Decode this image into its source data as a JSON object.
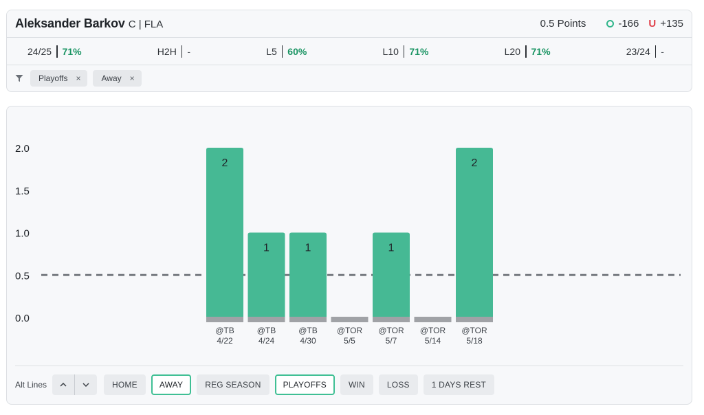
{
  "header": {
    "player_name": "Aleksander Barkov",
    "position_team": "C | FLA",
    "points_label": "0.5 Points",
    "over_odds": "-166",
    "under_symbol": "U",
    "under_odds": "+135"
  },
  "stats": [
    {
      "label": "24/25",
      "value": "71%"
    },
    {
      "label": "H2H",
      "value": "-"
    },
    {
      "label": "L5",
      "value": "60%"
    },
    {
      "label": "L10",
      "value": "71%"
    },
    {
      "label": "L20",
      "value": "71%"
    },
    {
      "label": "23/24",
      "value": "-"
    }
  ],
  "filters": [
    {
      "label": "Playoffs",
      "remove": "×"
    },
    {
      "label": "Away",
      "remove": "×"
    }
  ],
  "colors": {
    "bar": "#46b994",
    "bar_base": "#a0a2a6",
    "line": "#767a80",
    "accent": "#1a9463",
    "under": "#e0414b"
  },
  "chart_data": {
    "type": "bar",
    "categories": [
      "@TB 4/22",
      "@TB 4/24",
      "@TB 4/30",
      "@TOR 5/5",
      "@TOR 5/7",
      "@TOR 5/14",
      "@TOR 5/18"
    ],
    "opponents": [
      "@TB",
      "@TB",
      "@TB",
      "@TOR",
      "@TOR",
      "@TOR",
      "@TOR"
    ],
    "dates": [
      "4/22",
      "4/24",
      "4/30",
      "5/5",
      "5/7",
      "5/14",
      "5/18"
    ],
    "values": [
      2,
      1,
      1,
      0,
      1,
      0,
      2
    ],
    "value_labels": [
      "2",
      "1",
      "1",
      "",
      "1",
      "",
      "2"
    ],
    "yticks": [
      "2.0",
      "1.5",
      "1.0",
      "0.5",
      "0.0"
    ],
    "ytick_values": [
      2.0,
      1.5,
      1.0,
      0.5,
      0.0
    ],
    "ylim": [
      0,
      2
    ],
    "threshold": 0.5,
    "title": "",
    "xlabel": "",
    "ylabel": "",
    "grid": false
  },
  "footer": {
    "alt_lines_label": "Alt Lines",
    "step_up": "^",
    "step_down": "v",
    "pills": [
      {
        "label": "HOME",
        "active": false
      },
      {
        "label": "AWAY",
        "active": true
      },
      {
        "label": "REG SEASON",
        "active": false
      },
      {
        "label": "PLAYOFFS",
        "active": true
      },
      {
        "label": "WIN",
        "active": false
      },
      {
        "label": "LOSS",
        "active": false
      },
      {
        "label": "1 DAYS REST",
        "active": false
      }
    ]
  }
}
